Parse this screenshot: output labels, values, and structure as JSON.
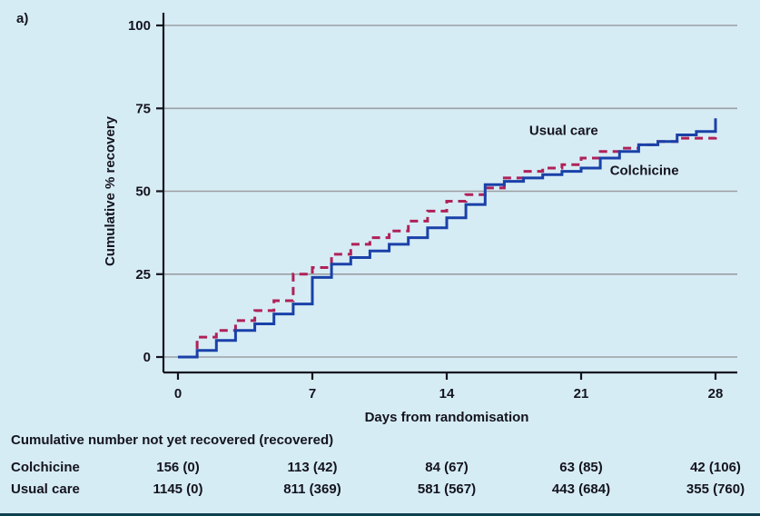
{
  "figure": {
    "panel_label": "a)"
  },
  "colors": {
    "background": "#d6ecf5",
    "colchicine": "#1a41a8",
    "usual_care": "#b02158",
    "grid": "#9b9fa3",
    "axis": "#14141e",
    "text": "#14141e",
    "bottom_bar": "#0f3f4f"
  },
  "chart_data": {
    "type": "line",
    "subtype": "step",
    "title": "",
    "xlabel": "Days from randomisation",
    "ylabel": "Cumulative % recovery",
    "xlim": [
      0,
      28
    ],
    "ylim": [
      0,
      100
    ],
    "xticks": [
      0,
      7,
      14,
      21,
      28
    ],
    "yticks": [
      0,
      25,
      50,
      75,
      100
    ],
    "grid": "horizontal",
    "legend_position": "inline-annotations",
    "series": [
      {
        "name": "Usual care",
        "color": "#b02158",
        "dash": true,
        "x": [
          0,
          1,
          2,
          3,
          4,
          5,
          6,
          7,
          8,
          9,
          10,
          11,
          12,
          13,
          14,
          15,
          16,
          17,
          18,
          19,
          20,
          21,
          22,
          23,
          24,
          25,
          26,
          27,
          28
        ],
        "y": [
          0,
          6,
          8,
          11,
          14,
          17,
          25,
          27,
          31,
          34,
          36,
          38,
          41,
          44,
          47,
          49,
          51,
          54,
          56,
          57,
          58,
          60,
          62,
          63,
          64,
          65,
          66,
          66,
          67
        ]
      },
      {
        "name": "Colchicine",
        "color": "#1a41a8",
        "dash": false,
        "x": [
          0,
          1,
          2,
          3,
          4,
          5,
          6,
          7,
          8,
          9,
          10,
          11,
          12,
          13,
          14,
          15,
          16,
          17,
          18,
          19,
          20,
          21,
          22,
          23,
          24,
          25,
          26,
          27,
          28
        ],
        "y": [
          0,
          2,
          5,
          8,
          10,
          13,
          16,
          24,
          28,
          30,
          32,
          34,
          36,
          39,
          42,
          46,
          52,
          53,
          54,
          55,
          56,
          57,
          60,
          62,
          64,
          65,
          67,
          68,
          72
        ]
      }
    ],
    "annotations": [
      {
        "text": "Usual care",
        "day": 18.3,
        "pct": 67,
        "color": "#b02158"
      },
      {
        "text": "Colchicine",
        "day": 22.5,
        "pct": 55,
        "color": "#1a41a8"
      }
    ]
  },
  "footer_table": {
    "title": "Cumulative number not yet recovered (recovered)",
    "columns_days": [
      0,
      7,
      14,
      21,
      28
    ],
    "rows": [
      {
        "label": "Colchicine",
        "values": [
          "156 (0)",
          "113 (42)",
          "84 (67)",
          "63 (85)",
          "42 (106)"
        ]
      },
      {
        "label": "Usual care",
        "values": [
          "1145 (0)",
          "811 (369)",
          "581 (567)",
          "443 (684)",
          "355 (760)"
        ]
      }
    ]
  }
}
